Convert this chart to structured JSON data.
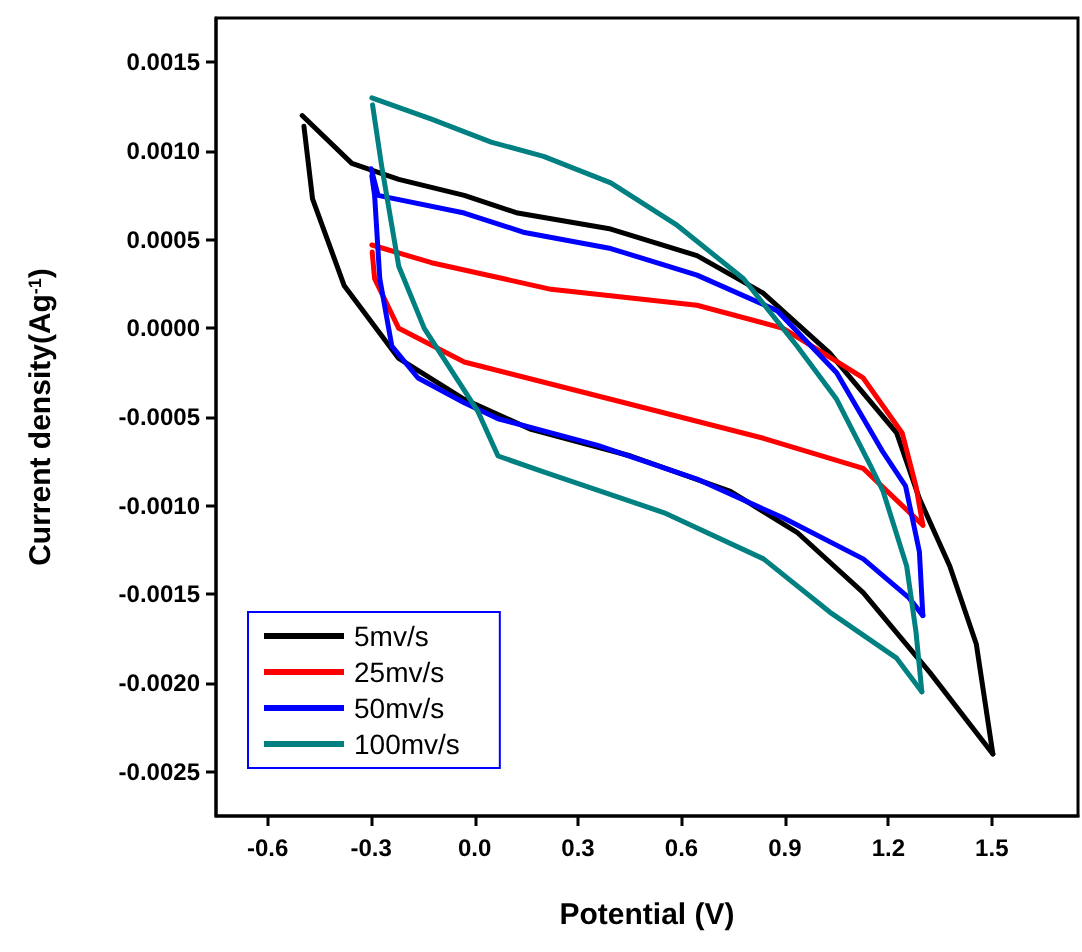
{
  "chart_data": {
    "type": "line",
    "xlabel": "Potential (V)",
    "ylabel": "Current density(Ag$^{-1}$)",
    "xlim": [
      -0.75,
      1.75
    ],
    "ylim": [
      -0.00275,
      0.00175
    ],
    "xticks": [
      -0.6,
      -0.3,
      {
        "value": 0,
        "label": "0.0"
      },
      0.3,
      0.6,
      0.9,
      1.2,
      1.5
    ],
    "yticks": [
      -0.0025,
      {
        "value": -0.002,
        "label": "-0.0020"
      },
      -0.0015,
      {
        "value": -0.001,
        "label": "-0.0010"
      },
      -0.0005,
      {
        "value": 0,
        "label": "0.0000"
      },
      0.0005,
      {
        "value": 0.001,
        "label": "0.0010"
      },
      0.0015
    ],
    "grid": false,
    "legend": "bottom left",
    "marker": "none",
    "line_style": "solid",
    "series": [
      {
        "name": "5mv/s",
        "color": "#000000",
        "x": [
          -0.5,
          -0.356,
          -0.22,
          -0.03,
          0.125,
          0.395,
          0.645,
          0.836,
          1.03,
          1.224,
          1.29,
          1.378,
          1.455,
          1.503
        ],
        "values": [
          0.0012,
          0.00093,
          0.00084,
          0.00075,
          0.00065,
          0.00056,
          0.00041,
          0.0002,
          -0.00014,
          -0.00059,
          -0.00096,
          -0.00134,
          -0.00178,
          -0.0024
        ]
      },
      {
        "color": "#000000",
        "x": [
          1.503,
          1.32,
          1.127,
          0.935,
          0.742,
          0.453,
          0.164,
          -0.03,
          -0.22,
          -0.378,
          -0.47,
          -0.495
        ],
        "values": [
          -0.0024,
          -0.00194,
          -0.00149,
          -0.00115,
          -0.00092,
          -0.00072,
          -0.00057,
          -0.0004,
          -0.00017,
          0.00024,
          0.00073,
          0.00114
        ]
      },
      {
        "name": "25mv/s",
        "color": "#ff0000",
        "x": [
          -0.298,
          -0.125,
          0.222,
          0.645,
          0.895,
          1.127,
          1.24,
          1.28,
          1.3
        ],
        "values": [
          0.00047,
          0.00037,
          0.00022,
          0.00013,
          0,
          -0.00028,
          -0.00059,
          -0.00089,
          -0.00111
        ]
      },
      {
        "color": "#ff0000",
        "x": [
          1.3,
          1.127,
          0.838,
          0.395,
          -0.03,
          -0.22,
          -0.29,
          -0.297
        ],
        "values": [
          -0.00111,
          -0.00079,
          -0.00062,
          -0.0004,
          -0.00019,
          0,
          0.00028,
          0.00043
        ]
      },
      {
        "name": "50mv/s",
        "color": "#0000ff",
        "x": [
          -0.3,
          -0.28,
          -0.03,
          0.145,
          0.395,
          0.645,
          0.877,
          1.05,
          1.185,
          1.25,
          1.29,
          1.3
        ],
        "values": [
          0.0009,
          0.00075,
          0.00065,
          0.00054,
          0.00045,
          0.0003,
          0.0001,
          -0.00025,
          -0.0007,
          -0.00089,
          -0.00126,
          -0.00162
        ]
      },
      {
        "color": "#0000ff",
        "x": [
          1.3,
          1.26,
          1.127,
          0.896,
          0.645,
          0.357,
          0.068,
          -0.03,
          -0.164,
          -0.24,
          -0.275,
          -0.29,
          -0.298
        ],
        "values": [
          -0.00162,
          -0.00152,
          -0.0013,
          -0.00107,
          -0.00085,
          -0.00066,
          -0.00051,
          -0.00042,
          -0.00028,
          -0.0001,
          0.00028,
          0.00075,
          0.00086
        ]
      },
      {
        "name": "100mv/s",
        "color": "#008080",
        "x": [
          -0.298,
          -0.125,
          0.048,
          0.2,
          0.395,
          0.588,
          0.78,
          0.935,
          1.05,
          1.147,
          1.185,
          1.253,
          1.28,
          1.297
        ],
        "values": [
          0.0013,
          0.00118,
          0.00105,
          0.00097,
          0.00082,
          0.00058,
          0.00028,
          -0.0001,
          -0.0004,
          -0.00077,
          -0.00092,
          -0.00134,
          -0.00171,
          -0.00205
        ]
      },
      {
        "color": "#008080",
        "x": [
          1.297,
          1.224,
          1.03,
          0.838,
          0.55,
          0.2,
          0.068,
          0.01,
          -0.146,
          -0.22,
          -0.27,
          -0.296
        ],
        "values": [
          -0.00205,
          -0.00186,
          -0.0016,
          -0.0013,
          -0.00104,
          -0.00081,
          -0.00072,
          -0.00047,
          0,
          0.00035,
          0.00092,
          0.00126
        ]
      }
    ]
  }
}
